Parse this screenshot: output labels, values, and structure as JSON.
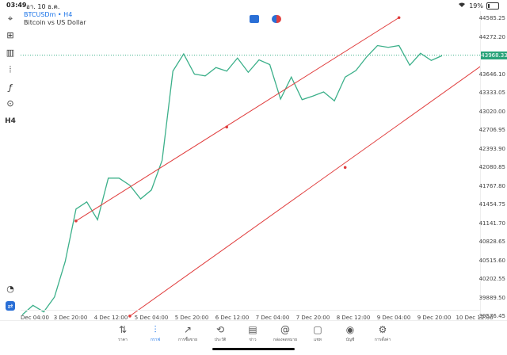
{
  "status_bar": {
    "time": "03:49",
    "date": "อา. 10 ธ.ค.",
    "battery": "19%"
  },
  "symbol": {
    "name": "BTCUSDm • H4",
    "description": "Bitcoin vs US Dollar"
  },
  "left_toolbar": [
    {
      "name": "crosshair-icon",
      "glyph": "⌖"
    },
    {
      "name": "indicators-icon",
      "glyph": "⊞"
    },
    {
      "name": "volume-bars-icon",
      "glyph": "▥"
    },
    {
      "name": "objects-icon",
      "glyph": "⦙"
    },
    {
      "name": "function-icon",
      "glyph": "ƒ"
    },
    {
      "name": "shapes-icon",
      "glyph": "⊙"
    },
    {
      "name": "timeframe-label",
      "glyph": "H4"
    }
  ],
  "price_axis": {
    "labels": [
      "44585.25",
      "44272.20",
      "43646.10",
      "43333.05",
      "43020.00",
      "42706.95",
      "42393.90",
      "42080.85",
      "41767.80",
      "41454.75",
      "41141.70",
      "40828.65",
      "40515.60",
      "40202.55",
      "39889.50",
      "39576.45"
    ],
    "current": "43968.33"
  },
  "time_axis": {
    "labels": [
      "Dec 04:00",
      "3 Dec 20:00",
      "4 Dec 12:00",
      "5 Dec 04:00",
      "5 Dec 20:00",
      "6 Dec 12:00",
      "7 Dec 04:00",
      "7 Dec 20:00",
      "8 Dec 12:00",
      "9 Dec 04:00",
      "9 Dec 20:00",
      "10 Dec 12:00"
    ]
  },
  "chart_data": {
    "type": "line",
    "series": [
      {
        "values": [
          39600,
          39760,
          39650,
          39900,
          40500,
          41380,
          41500,
          41200,
          41900,
          41900,
          41780,
          41550,
          41700,
          42200,
          43700,
          43990,
          43650,
          43620,
          43760,
          43700,
          43920,
          43680,
          43890,
          43810,
          43230,
          43600,
          43220,
          43280,
          43350,
          43200,
          43600,
          43710,
          43940,
          44130,
          44100,
          44130,
          43800,
          44000,
          43880,
          43960
        ],
        "color": "#3cb08a"
      }
    ],
    "ylim": [
      39418,
      44710
    ],
    "current_price": 43968.33,
    "channel_lines": [
      {
        "color": "#e03c3c",
        "points": [
          [
            5,
            41180
          ],
          [
            19,
            42760
          ],
          [
            35,
            44600
          ]
        ]
      },
      {
        "color": "#e03c3c",
        "points": [
          [
            10,
            39580
          ],
          [
            30,
            42080
          ],
          [
            48,
            44480
          ]
        ]
      }
    ]
  },
  "tab_bar": [
    {
      "name": "tab-quotes",
      "label": "ราคา",
      "glyph": "⇅",
      "active": false
    },
    {
      "name": "tab-chart",
      "label": "กราฟ",
      "glyph": "⫶",
      "active": true
    },
    {
      "name": "tab-trade",
      "label": "การซื้อขาย",
      "glyph": "↗",
      "active": false
    },
    {
      "name": "tab-history",
      "label": "ประวัติ",
      "glyph": "⟲",
      "active": false
    },
    {
      "name": "tab-news",
      "label": "ข่าว",
      "glyph": "▤",
      "active": false
    },
    {
      "name": "tab-mailbox",
      "label": "กล่องจดหมาย",
      "glyph": "@",
      "active": false
    },
    {
      "name": "tab-chat",
      "label": "แชท",
      "glyph": "▢",
      "active": false
    },
    {
      "name": "tab-accounts",
      "label": "บัญชี",
      "glyph": "◉",
      "active": false
    },
    {
      "name": "tab-settings",
      "label": "การตั้งค่า",
      "glyph": "⚙",
      "active": false
    }
  ]
}
